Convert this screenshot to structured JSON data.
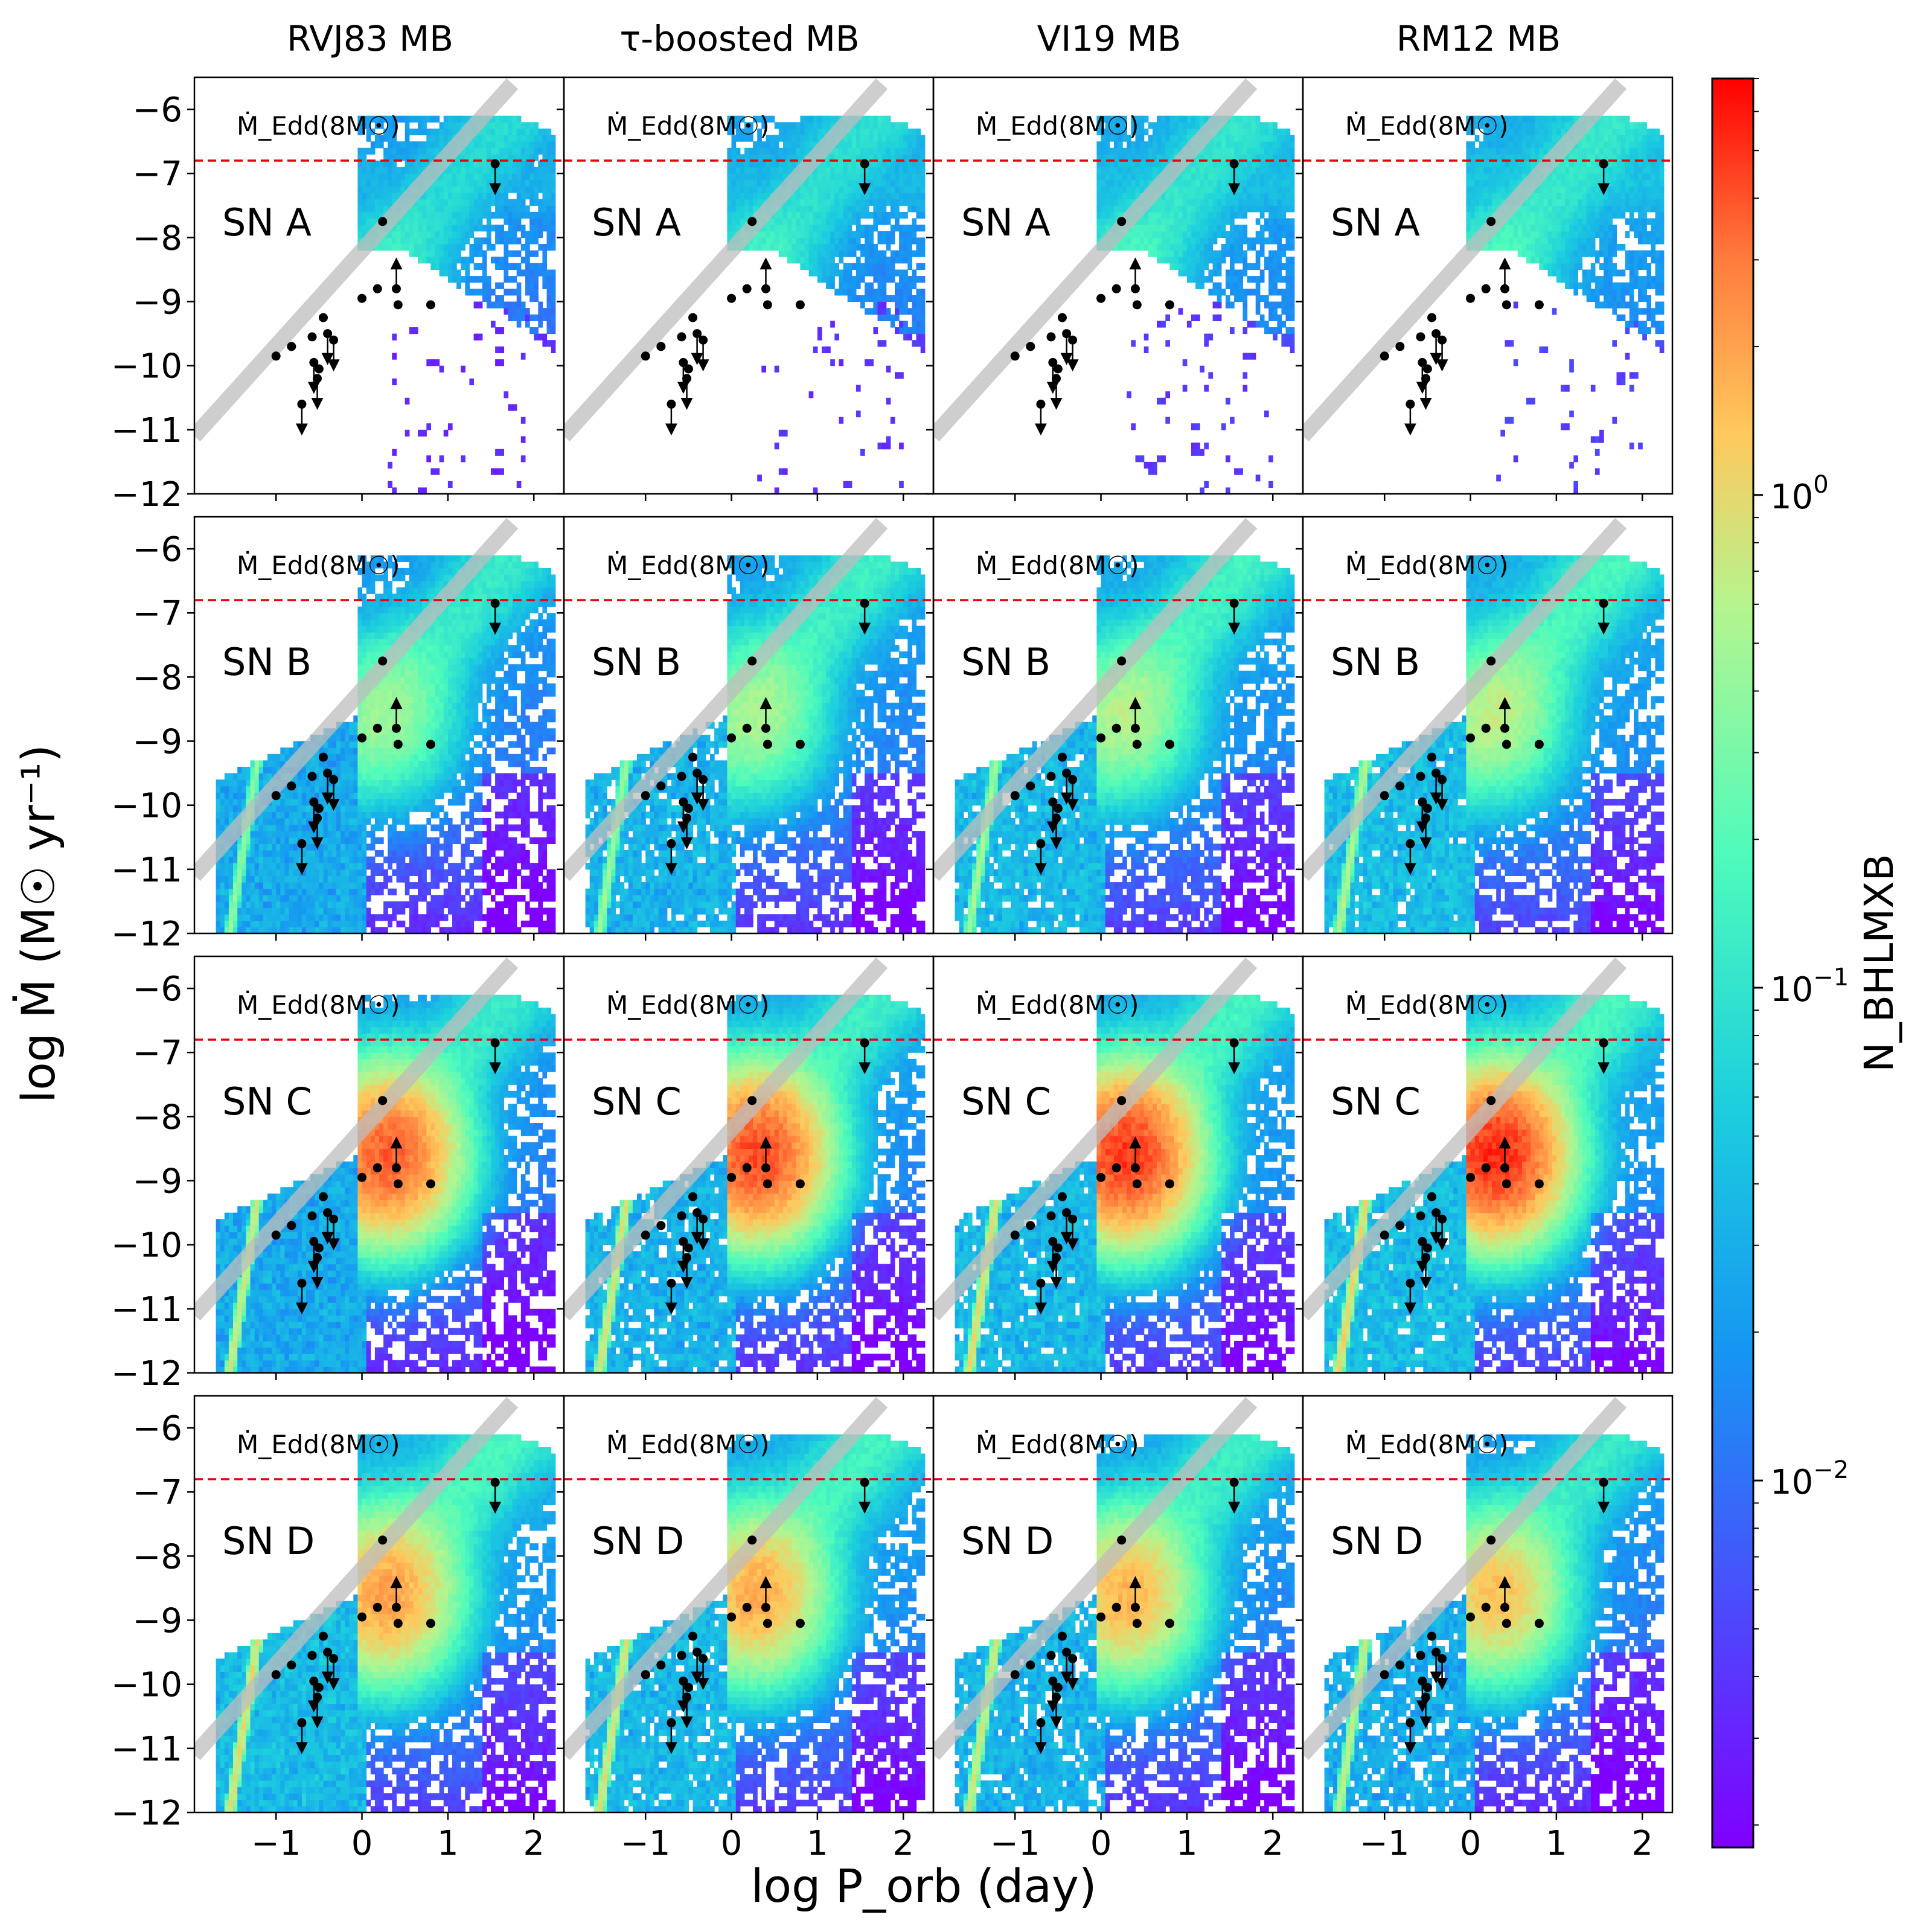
{
  "figure": {
    "xlabel": "log P_orb (day)",
    "ylabel": "log Ṁ (M☉ yr⁻¹)",
    "colorbar_label": "N_BHLMXB",
    "edd_label": "Ṁ_Edd(8M☉)",
    "columns": [
      "RVJ83 MB",
      "τ-boosted MB",
      "VI19 MB",
      "RM12 MB"
    ],
    "rows": [
      "SN A",
      "SN B",
      "SN C",
      "SN D"
    ]
  },
  "colors": {
    "edd_line": "#e8000b",
    "band": "#bdbdbd",
    "obs": "#000000",
    "axes": "#000000"
  },
  "chart_data": {
    "type": "heatmap",
    "xlim": [
      -1.95,
      2.35
    ],
    "ylim": [
      -12,
      -5.5
    ],
    "xticks": [
      -1,
      0,
      1,
      2
    ],
    "yticks": [
      -12,
      -11,
      -10,
      -9,
      -8,
      -7,
      -6
    ],
    "edd_logmdot": -6.8,
    "colorbar": {
      "scale": "log",
      "min": 0.0018,
      "max": 7.0,
      "ticks": [
        {
          "value": 1,
          "label": "10^0"
        },
        {
          "value": 0.1,
          "label": "10^-1"
        },
        {
          "value": 0.01,
          "label": "10^-2"
        }
      ]
    },
    "band_line": [
      [
        -1.95,
        -11.1
      ],
      [
        1.75,
        -5.6
      ]
    ],
    "observed_systems": [
      {
        "logP": -1.0,
        "logMdot": -9.85,
        "limit": "none"
      },
      {
        "logP": -0.82,
        "logMdot": -9.7,
        "limit": "none"
      },
      {
        "logP": -0.7,
        "logMdot": -10.6,
        "limit": "upper"
      },
      {
        "logP": -0.58,
        "logMdot": -9.55,
        "limit": "none"
      },
      {
        "logP": -0.56,
        "logMdot": -9.95,
        "limit": "upper"
      },
      {
        "logP": -0.52,
        "logMdot": -10.2,
        "limit": "upper"
      },
      {
        "logP": -0.5,
        "logMdot": -10.05,
        "limit": "none"
      },
      {
        "logP": -0.45,
        "logMdot": -9.25,
        "limit": "none"
      },
      {
        "logP": -0.4,
        "logMdot": -9.5,
        "limit": "upper"
      },
      {
        "logP": -0.33,
        "logMdot": -9.6,
        "limit": "upper"
      },
      {
        "logP": 0.0,
        "logMdot": -8.95,
        "limit": "none"
      },
      {
        "logP": 0.18,
        "logMdot": -8.8,
        "limit": "none"
      },
      {
        "logP": 0.24,
        "logMdot": -7.75,
        "limit": "none"
      },
      {
        "logP": 0.4,
        "logMdot": -8.8,
        "limit": "lower"
      },
      {
        "logP": 0.42,
        "logMdot": -9.05,
        "limit": "none"
      },
      {
        "logP": 0.8,
        "logMdot": -9.05,
        "limit": "none"
      },
      {
        "logP": 1.55,
        "logMdot": -6.85,
        "limit": "upper"
      }
    ],
    "heat_levels": [
      {
        "row": "SN A",
        "peak": 0.09,
        "low_p_branch": 0.0
      },
      {
        "row": "SN B",
        "peak": 0.45,
        "low_p_branch": 0.5
      },
      {
        "row": "SN C",
        "peak": 4.5,
        "low_p_branch": 1.0
      },
      {
        "row": "SN D",
        "peak": 1.6,
        "low_p_branch": 0.9
      }
    ]
  }
}
